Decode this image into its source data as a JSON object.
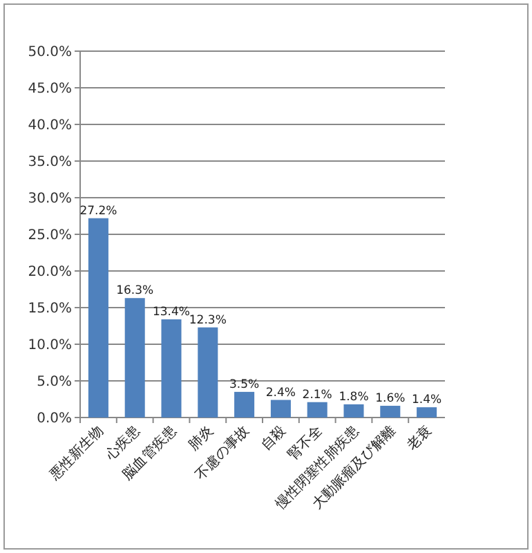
{
  "chart_data": {
    "type": "bar",
    "categories": [
      "悪性新生物",
      "心疾患",
      "脳血管疾患",
      "肺炎",
      "不慮の事故",
      "自殺",
      "腎不全",
      "慢性閉塞性肺疾患",
      "大動脈瘤及び解離",
      "老衰"
    ],
    "values": [
      27.2,
      16.3,
      13.4,
      12.3,
      3.5,
      2.4,
      2.1,
      1.8,
      1.6,
      1.4
    ],
    "value_labels": [
      "27.2%",
      "16.3%",
      "13.4%",
      "12.3%",
      "3.5%",
      "2.4%",
      "2.1%",
      "1.8%",
      "1.6%",
      "1.4%"
    ],
    "color": "#4f81bd",
    "ylim": [
      0,
      50
    ],
    "yticks": [
      {
        "value": 0,
        "label": "0.0%"
      },
      {
        "value": 5,
        "label": "5.0%"
      },
      {
        "value": 10,
        "label": "10.0%"
      },
      {
        "value": 15,
        "label": "15.0%"
      },
      {
        "value": 20,
        "label": "20.0%"
      },
      {
        "value": 25,
        "label": "25.0%"
      },
      {
        "value": 30,
        "label": "30.0%"
      },
      {
        "value": 35,
        "label": "35.0%"
      },
      {
        "value": 40,
        "label": "40.0%"
      },
      {
        "value": 45,
        "label": "45.0%"
      },
      {
        "value": 50,
        "label": "50.0%"
      }
    ],
    "grid": "y"
  }
}
